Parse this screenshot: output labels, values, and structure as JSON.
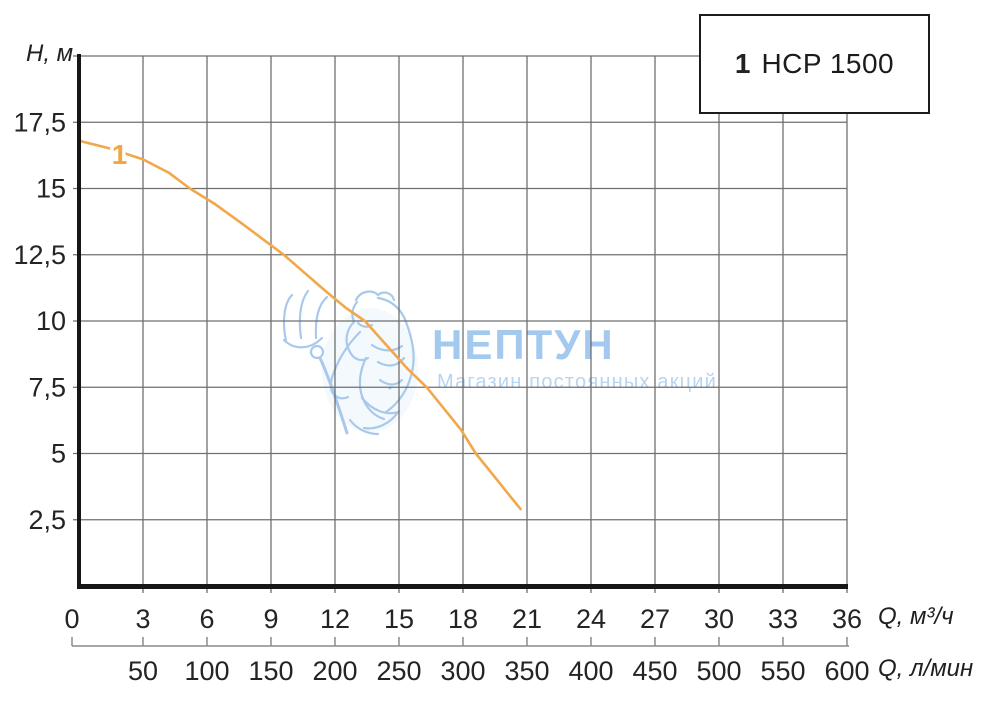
{
  "legend": {
    "items": [
      {
        "index": "1",
        "label": "HCP 1500",
        "index_color": "#f0a643"
      }
    ]
  },
  "watermark": {
    "title": "НЕПТУН",
    "subtitle": "Магазин постоянных акций",
    "figure_icon": "neptune-trident-figure",
    "title_color": "#a3c9ef",
    "subtitle_color": "#b7d4f3"
  },
  "colors": {
    "curve": "#f2a74a",
    "accent_orange": "#f0a643",
    "grid": "#6f6f6f",
    "axis": "#161616",
    "scale_line": "#8a8a8a"
  },
  "chart_data": {
    "type": "line",
    "title": "",
    "legend_position": "top-right",
    "grid": true,
    "x_axis_primary": {
      "label": "Q, м³/ч",
      "tick_values": [
        0,
        3,
        6,
        9,
        12,
        15,
        18,
        21,
        24,
        27,
        30,
        33,
        36
      ],
      "range": [
        0,
        36
      ],
      "gridline_step": 3
    },
    "x_axis_secondary": {
      "label": "Q, л/мин",
      "tick_values": [
        50,
        100,
        150,
        200,
        250,
        300,
        350,
        400,
        450,
        500,
        550,
        600
      ],
      "range": [
        0,
        600
      ]
    },
    "y_axis": {
      "label": "H, м",
      "tick_labels": [
        "2,5",
        "5",
        "7,5",
        "10",
        "12,5",
        "15",
        "17,5"
      ],
      "tick_values": [
        2.5,
        5,
        7.5,
        10,
        12.5,
        15,
        17.5
      ],
      "range": [
        0,
        20
      ],
      "gridline_step": 2.5
    },
    "series": [
      {
        "id": "1",
        "name": "HCP 1500",
        "color": "#f2a74a",
        "curve_label": "1",
        "curve_label_at": [
          1.9,
          16.3
        ],
        "points_q_h": [
          [
            0,
            16.8
          ],
          [
            1.5,
            16.5
          ],
          [
            3,
            16.1
          ],
          [
            4.2,
            15.6
          ],
          [
            5.2,
            15.0
          ],
          [
            6.4,
            14.4
          ],
          [
            7.6,
            13.7
          ],
          [
            8.6,
            13.1
          ],
          [
            9.6,
            12.5
          ],
          [
            10.6,
            11.8
          ],
          [
            11.6,
            11.1
          ],
          [
            12.5,
            10.5
          ],
          [
            13.4,
            10.0
          ],
          [
            14.4,
            9.1
          ],
          [
            15.4,
            8.2
          ],
          [
            16.3,
            7.5
          ],
          [
            17.1,
            6.7
          ],
          [
            17.9,
            5.9
          ],
          [
            18.6,
            5.0
          ],
          [
            19.4,
            4.2
          ],
          [
            20.1,
            3.5
          ],
          [
            20.7,
            2.9
          ]
        ]
      }
    ]
  }
}
